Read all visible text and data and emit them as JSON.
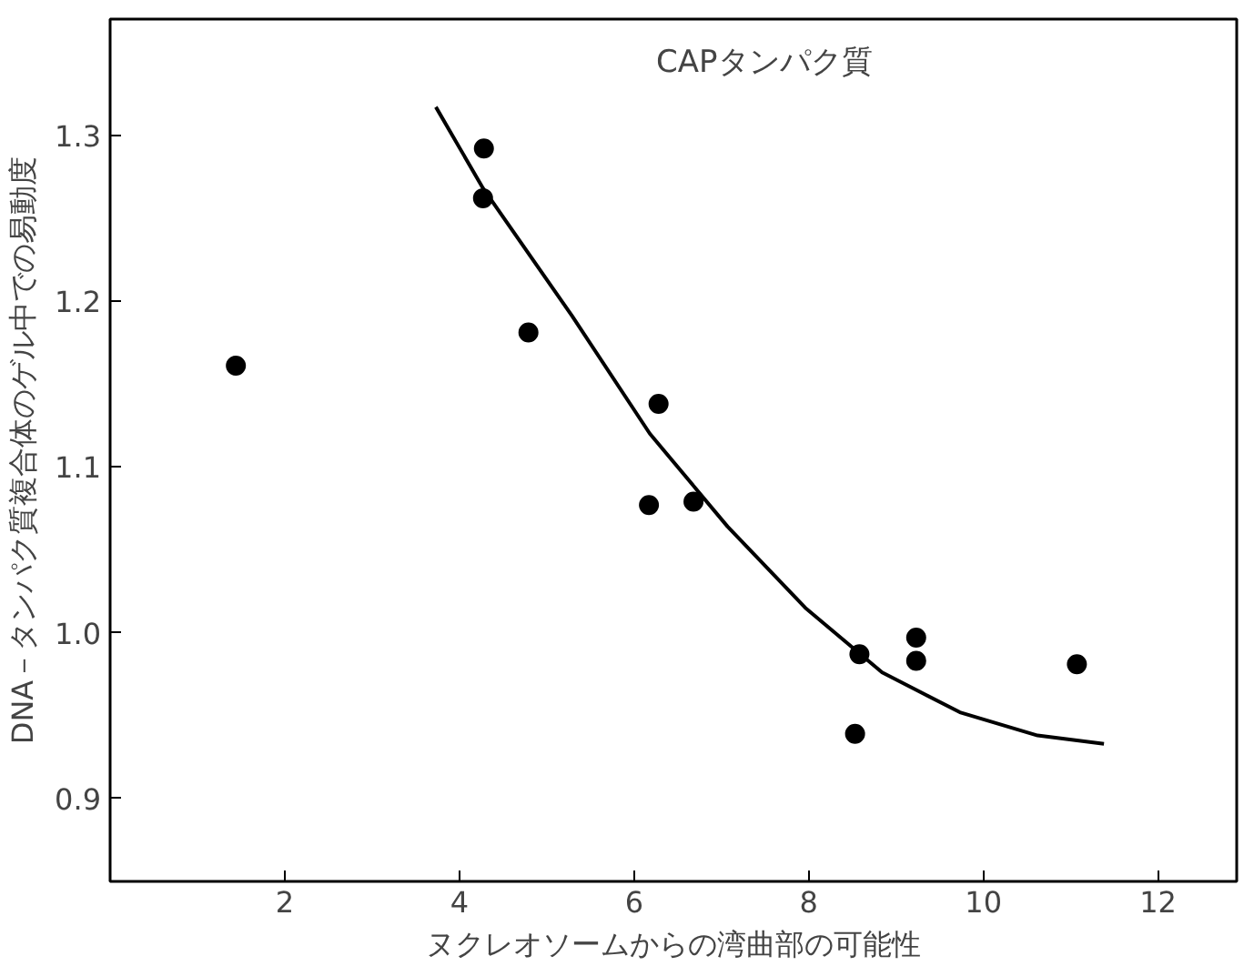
{
  "chart_data": {
    "type": "scatter",
    "xlabel": "ヌクレオソームからの湾曲部の可能性",
    "ylabel": "DNA－タンパク質複合体のゲル中での易動度",
    "annotations": [
      "CAPタンパク質"
    ],
    "xlim": [
      0,
      12.9
    ],
    "ylim": [
      0.85,
      1.37
    ],
    "xticks": [
      2,
      4,
      6,
      8,
      10,
      12
    ],
    "yticks": [
      0.9,
      {
        "value": 1.0,
        "label": "1.0"
      },
      1.1,
      1.2,
      1.3
    ],
    "grid": false,
    "series": [
      {
        "color": "#000000",
        "marker": "circle",
        "x": [
          1.44,
          4.28,
          4.27,
          4.79,
          6.28,
          6.17,
          6.68,
          8.58,
          8.53,
          9.23,
          9.23,
          11.07
        ],
        "values": [
          1.161,
          1.292,
          1.262,
          1.181,
          1.138,
          1.077,
          1.079,
          0.987,
          0.939,
          0.997,
          0.983,
          0.981
        ]
      },
      {
        "type": "line",
        "color": "#000000",
        "line_style": "solid",
        "marker": "none",
        "x": [
          3.73,
          4.27,
          5.29,
          6.18,
          7.07,
          7.96,
          8.84,
          9.73,
          10.62,
          11.38
        ],
        "values": [
          1.317,
          1.268,
          1.191,
          1.12,
          1.064,
          1.015,
          0.976,
          0.952,
          0.938,
          0.933
        ]
      }
    ]
  }
}
